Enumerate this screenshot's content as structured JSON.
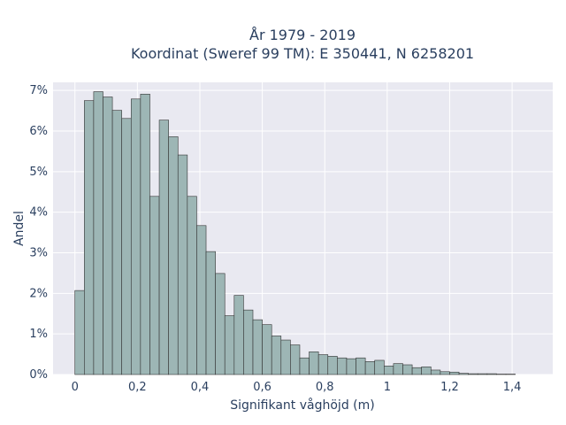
{
  "chart_data": {
    "type": "bar",
    "title_line1": "År 1979 - 2019",
    "title_line2": "Koordinat (Sweref 99 TM): E 350441, N 6258201",
    "xlabel": "Signifikant våghöjd (m)",
    "ylabel": "Andel",
    "xlim": [
      -0.07,
      1.53
    ],
    "ylim": [
      0,
      7.2
    ],
    "bin_width": 0.03,
    "bins_start": 0.0,
    "x_ticks": [
      {
        "value": 0,
        "label": "0"
      },
      {
        "value": 0.2,
        "label": "0,2"
      },
      {
        "value": 0.4,
        "label": "0,4"
      },
      {
        "value": 0.6,
        "label": "0,6"
      },
      {
        "value": 0.8,
        "label": "0,8"
      },
      {
        "value": 1.0,
        "label": "1"
      },
      {
        "value": 1.2,
        "label": "1,2"
      },
      {
        "value": 1.4,
        "label": "1,4"
      }
    ],
    "y_ticks": [
      {
        "value": 0,
        "label": "0%"
      },
      {
        "value": 1,
        "label": "1%"
      },
      {
        "value": 2,
        "label": "2%"
      },
      {
        "value": 3,
        "label": "3%"
      },
      {
        "value": 4,
        "label": "4%"
      },
      {
        "value": 5,
        "label": "5%"
      },
      {
        "value": 6,
        "label": "6%"
      },
      {
        "value": 7,
        "label": "7%"
      }
    ],
    "values": [
      2.07,
      6.75,
      6.97,
      6.84,
      6.51,
      6.31,
      6.79,
      6.91,
      4.39,
      6.27,
      5.86,
      5.41,
      4.39,
      3.67,
      3.03,
      2.49,
      1.45,
      1.95,
      1.59,
      1.35,
      1.23,
      0.95,
      0.85,
      0.73,
      0.41,
      0.56,
      0.49,
      0.45,
      0.41,
      0.39,
      0.41,
      0.32,
      0.35,
      0.21,
      0.27,
      0.24,
      0.17,
      0.19,
      0.11,
      0.07,
      0.06,
      0.03,
      0.02,
      0.02,
      0.02,
      0.01,
      0.01
    ],
    "colors": {
      "bar_fill": "#9db6b5",
      "bar_stroke": "#333333",
      "plot_bg": "#e9e9f1",
      "grid": "#ffffff",
      "text": "#2a3f5f"
    },
    "grid": true
  }
}
